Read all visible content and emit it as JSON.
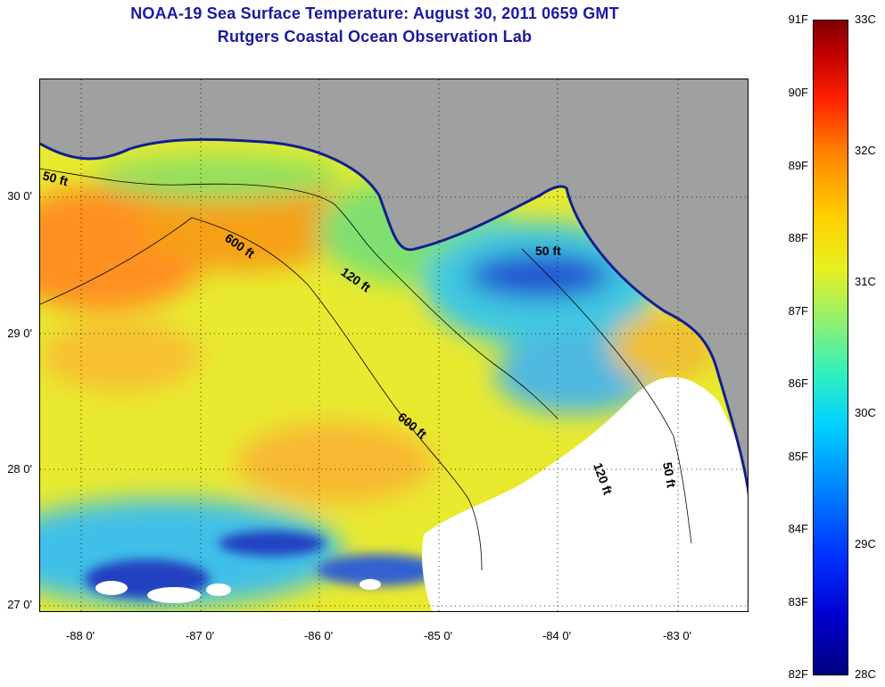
{
  "title": {
    "line1": "NOAA-19 Sea Surface Temperature:  August 30, 2011 0659 GMT",
    "line2": "Rutgers Coastal Ocean Observation Lab"
  },
  "axes": {
    "lat_labels": [
      "30 0'",
      "29 0'",
      "28 0'",
      "27 0'"
    ],
    "lon_labels": [
      "-88 0'",
      "-87 0'",
      "-86 0'",
      "-85 0'",
      "-84 0'",
      "-83 0'"
    ]
  },
  "contours": {
    "labels": [
      "50 ft",
      "600 ft",
      "120 ft",
      "50 ft",
      "600 ft",
      "120 ft",
      "50 ft"
    ]
  },
  "colorbar": {
    "fahrenheit": [
      "91F",
      "90F",
      "89F",
      "88F",
      "87F",
      "86F",
      "85F",
      "84F",
      "83F",
      "82F"
    ],
    "celsius": [
      "33C",
      "32C",
      "31C",
      "30C",
      "29C",
      "28C"
    ]
  },
  "colors": {
    "land": "#9fa0a0",
    "cloud": "#ffffff",
    "warm": "#ff8c1a",
    "mid": "#f0e020",
    "cool": "#40d8e0",
    "cold": "#1030c0",
    "title": "#1a1aa0"
  }
}
